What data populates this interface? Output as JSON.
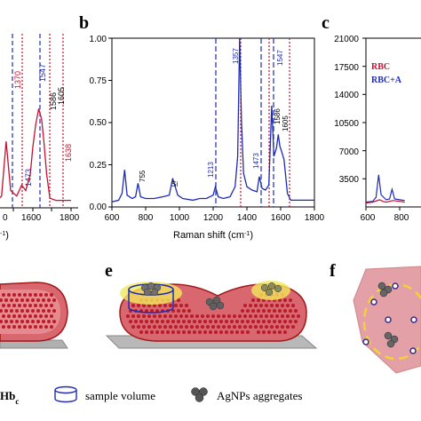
{
  "panel_labels": {
    "b": "b",
    "c": "c",
    "e": "e",
    "f": "f"
  },
  "xlabel_b": "Raman shift (cm",
  "xlabel_b_sup": "-1",
  "xlabel_b_close": ")",
  "xlabel_a_fragment": "-1",
  "xlabel_a_close": ")",
  "annotations_a": {
    "a1473": "1473",
    "a1547": "1547",
    "a1586": "1586",
    "a1605": "1605",
    "a1638": "1638",
    "a1370": "1370"
  },
  "annotations_b": {
    "b755": "755",
    "bSi": "Si",
    "b1213": "1213",
    "b1357": "1357",
    "b1473": "1473",
    "b1547": "1547",
    "b1586": "1586",
    "b1605": "1605"
  },
  "legend_c": {
    "rbc": "RBC",
    "rbc_ag": "RBC+A"
  },
  "bottom_legend": {
    "hb": "Hb",
    "hb_sub": "c",
    "sample_volume": "sample volume",
    "agnps": "AgNPs aggregates"
  },
  "colors": {
    "blue": "#1f2bb5",
    "red": "#c8102e",
    "dark_red": "#a01818",
    "pink": "#e3a0a6"
  },
  "chart_data": [
    {
      "panel": "a",
      "type": "line",
      "x_ticks": [
        "1600",
        "1800"
      ],
      "partial_x_tick": "0",
      "series": [
        {
          "x": [
            1300,
            1340,
            1370,
            1400,
            1440,
            1473,
            1500,
            1530,
            1547,
            1565,
            1586,
            1605,
            1620,
            1638,
            1660,
            1700,
            1750,
            1800
          ],
          "y": [
            0.05,
            0.1,
            0.6,
            0.15,
            0.1,
            0.2,
            0.15,
            0.3,
            0.55,
            0.75,
            0.9,
            0.8,
            0.6,
            0.3,
            0.08,
            0.06,
            0.06,
            0.06
          ]
        }
      ],
      "xlim": [
        1300,
        1800
      ]
    },
    {
      "panel": "b",
      "type": "line",
      "xlabel": "Raman shift (cm-1)",
      "x_ticks": [
        "600",
        "800",
        "1000",
        "1200",
        "1400",
        "1600",
        "1800"
      ],
      "y_ticks": [
        "0.00",
        "0.25",
        "0.50",
        "0.75",
        "1.00"
      ],
      "xlim": [
        600,
        1800
      ],
      "ylim": [
        0,
        1
      ],
      "series": [
        {
          "x": [
            600,
            640,
            660,
            675,
            690,
            720,
            740,
            755,
            770,
            800,
            850,
            900,
            940,
            960,
            975,
            990,
            1020,
            1080,
            1120,
            1160,
            1200,
            1213,
            1230,
            1260,
            1300,
            1330,
            1345,
            1357,
            1368,
            1380,
            1400,
            1430,
            1460,
            1473,
            1490,
            1510,
            1530,
            1547,
            1560,
            1575,
            1586,
            1595,
            1605,
            1620,
            1640,
            1660,
            1700,
            1750,
            1800
          ],
          "y": [
            0.03,
            0.04,
            0.08,
            0.22,
            0.07,
            0.05,
            0.06,
            0.14,
            0.06,
            0.05,
            0.05,
            0.06,
            0.07,
            0.17,
            0.12,
            0.07,
            0.05,
            0.04,
            0.05,
            0.05,
            0.07,
            0.12,
            0.06,
            0.05,
            0.06,
            0.12,
            0.3,
            1.0,
            0.5,
            0.2,
            0.12,
            0.1,
            0.09,
            0.18,
            0.11,
            0.1,
            0.13,
            0.6,
            0.3,
            0.35,
            0.43,
            0.36,
            0.33,
            0.28,
            0.08,
            0.04,
            0.04,
            0.04,
            0.04
          ]
        }
      ]
    },
    {
      "panel": "c",
      "type": "line",
      "y_ticks": [
        "3500",
        "7000",
        "10500",
        "14000",
        "17500",
        "21000"
      ],
      "x_ticks": [
        "600",
        "800"
      ],
      "ylim": [
        0,
        21000
      ],
      "series": [
        {
          "name": "RBC",
          "x": [
            600,
            640,
            680,
            700,
            720,
            760,
            800,
            830
          ],
          "y": [
            500,
            600,
            900,
            700,
            600,
            800,
            700,
            600
          ]
        },
        {
          "name": "RBC+A",
          "x": [
            600,
            640,
            660,
            675,
            690,
            720,
            740,
            755,
            770,
            800,
            830
          ],
          "y": [
            600,
            700,
            1200,
            4000,
            1500,
            900,
            1000,
            2200,
            1000,
            900,
            800
          ]
        }
      ]
    }
  ]
}
